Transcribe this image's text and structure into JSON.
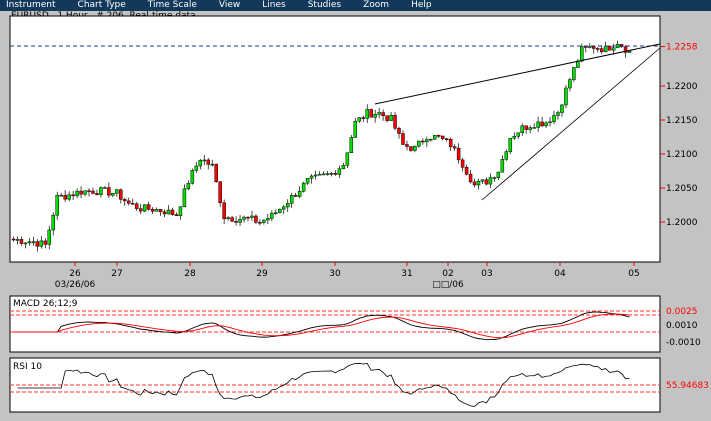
{
  "menu": [
    "Instrument",
    "Chart Type",
    "Time Scale",
    "View",
    "Lines",
    "Studies",
    "Zoom",
    "Help"
  ],
  "title": "EURUSD , 1 Hour , # 206, Real-time data",
  "colors": {
    "menubar": "#12395c",
    "up": "#00e000",
    "down": "#ff0000",
    "macd": "#000000",
    "signal": "#ff0000",
    "current_line": "#1a3a8a",
    "label_red": "#ff0000"
  },
  "chart_data": {
    "type": "candlestick",
    "instrument": "EURUSD",
    "interval": "1 Hour",
    "price_ticks": [
      "1.2258",
      "1.2200",
      "1.2150",
      "1.2100",
      "1.2050",
      "1.2000"
    ],
    "current_price": "1.2258",
    "ylim": [
      1.1941,
      1.2303
    ],
    "x_ticks": [
      "26",
      "27",
      "28",
      "29",
      "30",
      "31",
      "02",
      "03",
      "04",
      "05"
    ],
    "x_sublabels": [
      "03/26/06",
      "□□/06"
    ],
    "approx_closes": [
      1.1975,
      1.1973,
      1.1971,
      1.1966,
      1.2036,
      1.204,
      1.2045,
      1.2046,
      1.2045,
      1.2042,
      1.2027,
      1.202,
      1.2019,
      1.2016,
      1.2011,
      1.206,
      1.2094,
      1.2082,
      1.2008,
      1.2005,
      1.2005,
      1.2,
      1.2009,
      1.2025,
      1.2042,
      1.206,
      1.2066,
      1.2071,
      1.2085,
      1.2146,
      1.216,
      1.216,
      1.2151,
      1.2113,
      1.2108,
      1.2127,
      1.2124,
      1.2114,
      1.2086,
      1.2054,
      1.206,
      1.2076,
      1.2125,
      1.2138,
      1.2145,
      1.2147,
      1.2162,
      1.221,
      1.2253,
      1.2258,
      1.2254,
      1.2265,
      1.225
    ],
    "macd": {
      "label": "MACD 26;12;9",
      "ticks": [
        "0.0025",
        "0.0010",
        "-0.0010"
      ]
    },
    "rsi": {
      "label": "RSI 10",
      "value": "55.94683"
    }
  }
}
